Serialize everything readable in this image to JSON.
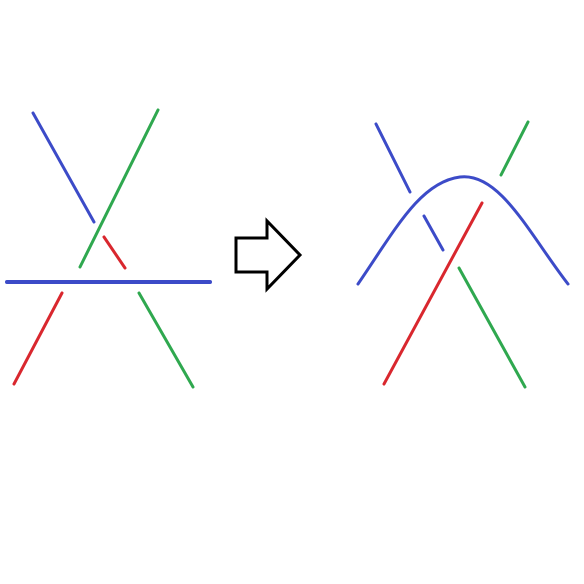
{
  "diagram": {
    "type": "knot-move-illustration",
    "colors": {
      "blue": "#3c4bc8",
      "green": "#2fa84f",
      "red": "#d9272e",
      "arrow": "#000000",
      "background": "#ffffff"
    },
    "arrow_direction": "right",
    "left_panel": {
      "description_visible": false,
      "strands": [
        "blue",
        "green",
        "red"
      ]
    },
    "right_panel": {
      "description_visible": false,
      "strands": [
        "blue",
        "green",
        "red"
      ]
    }
  }
}
